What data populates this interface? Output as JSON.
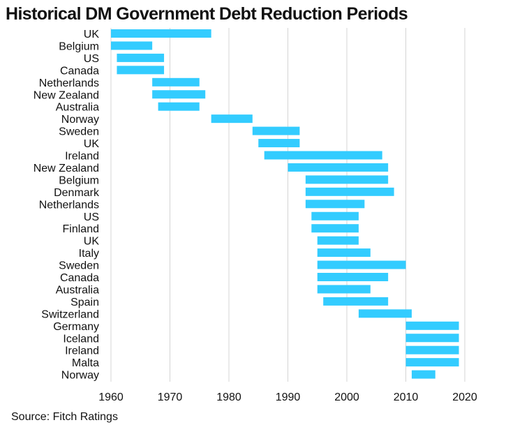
{
  "chart_data": {
    "type": "bar",
    "orientation": "horizontal-floating",
    "title": "Historical DM Government Debt Reduction Periods",
    "source": "Source: Fitch Ratings",
    "xlabel": "",
    "ylabel": "",
    "xlim": [
      1960,
      2020
    ],
    "xticks": [
      1960,
      1970,
      1980,
      1990,
      2000,
      2010,
      2020
    ],
    "grid": "vertical",
    "bar_color": "#33ccff",
    "categories": [
      "UK",
      "Belgium",
      "US",
      "Canada",
      "Netherlands",
      "New Zealand",
      "Australia",
      "Norway",
      "Sweden",
      "UK",
      "Ireland",
      "New Zealand",
      "Belgium",
      "Denmark",
      "Netherlands",
      "US",
      "Finland",
      "UK",
      "Italy",
      "Sweden",
      "Canada",
      "Australia",
      "Spain",
      "Switzerland",
      "Germany",
      "Iceland",
      "Ireland",
      "Malta",
      "Norway"
    ],
    "start": [
      1960,
      1960,
      1961,
      1961,
      1967,
      1967,
      1968,
      1977,
      1984,
      1985,
      1986,
      1990,
      1993,
      1993,
      1993,
      1994,
      1994,
      1995,
      1995,
      1995,
      1995,
      1995,
      1996,
      2002,
      2010,
      2010,
      2010,
      2010,
      2011
    ],
    "end": [
      1977,
      1967,
      1969,
      1969,
      1975,
      1976,
      1975,
      1984,
      1992,
      1992,
      2006,
      2007,
      2007,
      2008,
      2003,
      2002,
      2002,
      2002,
      2004,
      2010,
      2007,
      2004,
      2007,
      2011,
      2019,
      2019,
      2019,
      2019,
      2015
    ]
  }
}
